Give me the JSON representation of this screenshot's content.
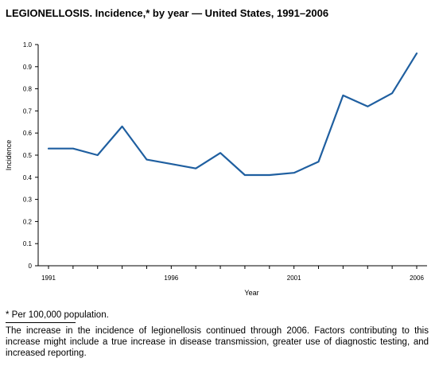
{
  "title": "LEGIONELLOSIS. Incidence,* by year — United States, 1991–2006",
  "footnote": "* Per 100,000 population.",
  "caption": "The increase in the incidence of legionellosis continued through 2006. Factors contributing to this increase might include a true increase in disease transmission, greater use of diagnostic testing, and increased reporting.",
  "chart_data": {
    "type": "line",
    "xlabel": "Year",
    "ylabel": "Incidence",
    "xlim": [
      1991,
      2006
    ],
    "ylim": [
      0,
      1.0
    ],
    "x_ticks": [
      1991,
      1992,
      1993,
      1994,
      1995,
      1996,
      1997,
      1998,
      1999,
      2000,
      2001,
      2002,
      2003,
      2004,
      2005,
      2006
    ],
    "x_tick_labels": [
      "1991",
      "",
      "",
      "",
      "",
      "1996",
      "",
      "",
      "",
      "",
      "2001",
      "",
      "",
      "",
      "",
      "2006"
    ],
    "y_ticks": [
      0,
      0.1,
      0.2,
      0.3,
      0.4,
      0.5,
      0.6,
      0.7,
      0.8,
      0.9,
      1.0
    ],
    "y_tick_labels": [
      "0",
      "0.1",
      "0.2",
      "0.3",
      "0.4",
      "0.5",
      "0.6",
      "0.7",
      "0.8",
      "0.9",
      "1.0"
    ],
    "grid": false,
    "legend": "none",
    "series": [
      {
        "color": "#1f5fa0",
        "x": [
          1991,
          1992,
          1993,
          1994,
          1995,
          1996,
          1997,
          1998,
          1999,
          2000,
          2001,
          2002,
          2003,
          2004,
          2005,
          2006
        ],
        "values": [
          0.53,
          0.53,
          0.5,
          0.63,
          0.48,
          0.46,
          0.44,
          0.51,
          0.41,
          0.41,
          0.42,
          0.47,
          0.77,
          0.72,
          0.78,
          0.96
        ]
      }
    ]
  }
}
